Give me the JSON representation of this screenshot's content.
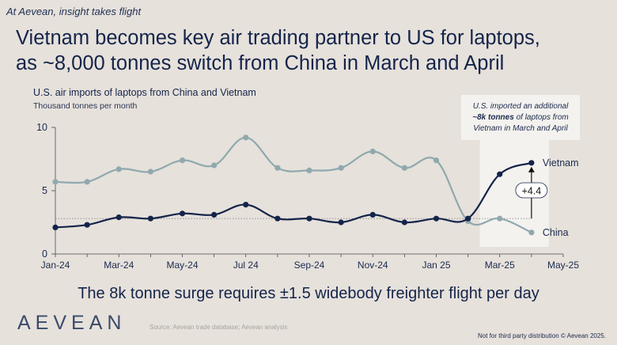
{
  "tagline": "At Aevean, insight takes flight",
  "headline_line1": "Vietnam becomes key air trading partner to US for laptops,",
  "headline_line2": "as ~8,000 tonnes switch from China in March and April",
  "conclusion": "The 8k tonne surge requires ±1.5 widebody freighter flight per day",
  "logo_text": "AEVEAN",
  "source": "Source: Aevean trade database; Aevean analysis",
  "disclaimer": "Not for third party distribution © Aevean 2025.",
  "chart_data": {
    "type": "line",
    "title": "U.S. air imports of laptops from China and Vietnam",
    "subtitle": "Thousand tonnes per month",
    "x": [
      "Jan-24",
      "Feb-24",
      "Mar-24",
      "Apr-24",
      "May-24",
      "Jun-24",
      "Jul 24",
      "Aug-24",
      "Sep-24",
      "Oct-24",
      "Nov-24",
      "Dec-24",
      "Jan 25",
      "Feb-25",
      "Mar-25",
      "Apr-25"
    ],
    "x_tick_labels": [
      "Jan-24",
      "Mar-24",
      "May-24",
      "Jul 24",
      "Sep-24",
      "Nov-24",
      "Jan 25",
      "Mar-25",
      "May-25"
    ],
    "ylim": [
      0,
      10
    ],
    "y_ticks": [
      0,
      5,
      10
    ],
    "grid": false,
    "series": [
      {
        "name": "Vietnam",
        "color": "#14244a",
        "values": [
          2.1,
          2.3,
          2.9,
          2.8,
          3.2,
          3.1,
          3.9,
          2.8,
          2.8,
          2.5,
          3.1,
          2.5,
          2.8,
          2.8,
          6.3,
          7.2
        ]
      },
      {
        "name": "China",
        "color": "#8fa9ad",
        "values": [
          5.7,
          5.7,
          6.7,
          6.5,
          7.4,
          7.0,
          9.2,
          6.8,
          6.6,
          6.8,
          8.1,
          6.8,
          7.4,
          2.6,
          2.8,
          1.7
        ]
      }
    ],
    "reference_line_value": 2.8,
    "annotation": {
      "line1": "U.S. imported an additional",
      "line2_bold": "~8k tonnes",
      "line2_rest": " of laptops from",
      "line3": "Vietnam in March and April"
    },
    "delta_label": "+4.4"
  }
}
